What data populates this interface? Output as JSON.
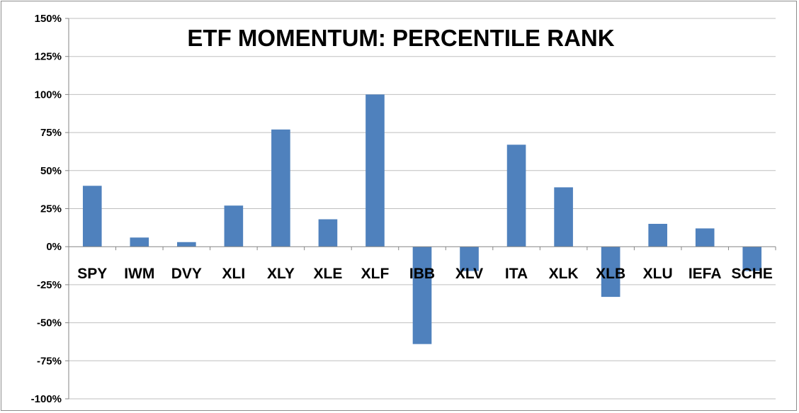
{
  "chart_data": {
    "type": "bar",
    "title": "ETF MOMENTUM: PERCENTILE RANK",
    "xlabel": "",
    "ylabel": "",
    "categories": [
      "SPY",
      "IWM",
      "DVY",
      "XLI",
      "XLY",
      "XLE",
      "XLF",
      "IBB",
      "XLV",
      "ITA",
      "XLK",
      "XLB",
      "XLU",
      "IEFA",
      "SCHE"
    ],
    "values": [
      40,
      6,
      3,
      27,
      77,
      18,
      100,
      -64,
      -16,
      67,
      39,
      -33,
      15,
      12,
      -16
    ],
    "ylim": [
      -100,
      150
    ],
    "yticks": [
      "-100%",
      "-75%",
      "-50%",
      "-25%",
      "0%",
      "25%",
      "50%",
      "75%",
      "100%",
      "125%",
      "150%"
    ],
    "ytick_values": [
      -100,
      -75,
      -50,
      -25,
      0,
      25,
      50,
      75,
      100,
      125,
      150
    ],
    "grid": true,
    "legend": "none",
    "bar_color": "#4f81bd",
    "grid_color": "#bfbfbf"
  }
}
